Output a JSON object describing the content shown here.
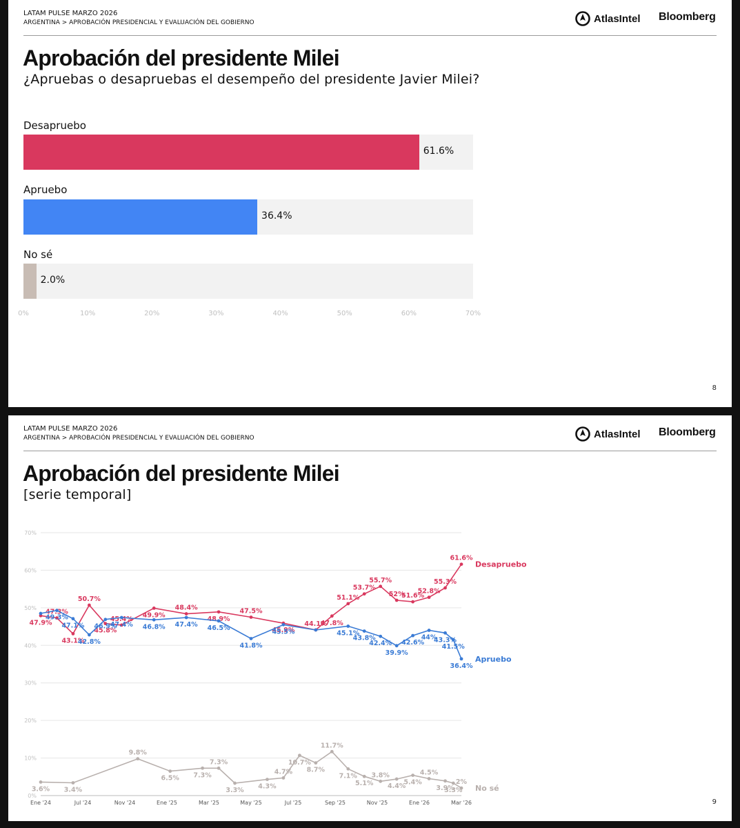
{
  "slide1": {
    "header_line1": "LATAM PULSE MARZO 2026",
    "header_line2a": "ARGENTINA",
    "header_sep": ">",
    "header_line2b": "APROBACIÓN PRESIDENCIAL Y EVALUACIÓN DEL GOBIERNO",
    "logo_atlas": "AtlasIntel",
    "logo_bloomberg": "Bloomberg",
    "title": "Aprobación del presidente Milei",
    "subtitle": "¿Apruebas o desapruebas el desempeño del presidente Javier Milei?",
    "page_number": "8"
  },
  "slide2": {
    "header_line1": "LATAM PULSE MARZO 2026",
    "header_line2a": "ARGENTINA",
    "header_sep": ">",
    "header_line2b": "APROBACIÓN PRESIDENCIAL Y EVALUACIÓN DEL GOBIERNO",
    "logo_atlas": "AtlasIntel",
    "logo_bloomberg": "Bloomberg",
    "title": "Aprobación del presidente Milei",
    "subtitle": "[serie temporal]",
    "page_number": "9"
  },
  "chart_data": [
    {
      "type": "bar",
      "orientation": "horizontal",
      "categories": [
        "Desapruebo",
        "Apruebo",
        "No sé"
      ],
      "values": [
        61.6,
        36.4,
        2.0
      ],
      "value_labels": [
        "61.6%",
        "36.4%",
        "2.0%"
      ],
      "colors": [
        "#d9385e",
        "#4285f4",
        "#c8bcb4"
      ],
      "xlim": [
        0,
        70
      ],
      "xticks": [
        "0%",
        "10%",
        "20%",
        "30%",
        "40%",
        "50%",
        "60%",
        "70%"
      ]
    },
    {
      "type": "line",
      "x": [
        "Ene '24",
        "Mar '24",
        "May '24",
        "Jul '24",
        "Sep '24",
        "Nov '24",
        "Ene '25",
        "Mar '25",
        "May '25",
        "Jul '25",
        "Sep '25",
        "Nov '25",
        "Ene '26",
        "Mar '26"
      ],
      "xlabels": [
        "Ene '24",
        "Jul '24",
        "Nov '24",
        "Ene '25",
        "Mar '25",
        "May '25",
        "Jul '25",
        "Sep '25",
        "Nov '25",
        "Ene '26",
        "Mar '26"
      ],
      "ylim": [
        0,
        70
      ],
      "yticks": [
        "0%",
        "10%",
        "20%",
        "30%",
        "40%",
        "50%",
        "60%",
        "70%"
      ],
      "series": [
        {
          "name": "Desapruebo",
          "color": "#d9385e",
          "points": [
            {
              "x": "Jan 2024",
              "y": 47.9,
              "label": "47.9%"
            },
            {
              "x": "Feb 2024",
              "y": 47.3,
              "label": "47.3%"
            },
            {
              "x": "Mar 2024",
              "y": 43.1,
              "label": "43.1%"
            },
            {
              "x": "Apr 2024",
              "y": 50.7,
              "label": "50.7%"
            },
            {
              "x": "May 2024",
              "y": 45.8,
              "label": "45.8%"
            },
            {
              "x": "Jun 2024",
              "y": 45.4,
              "label": "45.4%"
            },
            {
              "x": "Aug 2024",
              "y": 49.9,
              "label": "49.9%"
            },
            {
              "x": "Oct 2024",
              "y": 48.4,
              "label": "48.4%"
            },
            {
              "x": "Dec 2024",
              "y": 48.9,
              "label": "48.9%"
            },
            {
              "x": "Feb 2025",
              "y": 47.5,
              "label": "47.5%"
            },
            {
              "x": "Apr 2025",
              "y": 45.9,
              "label": "45.9%"
            },
            {
              "x": "Jun 2025",
              "y": 44.1,
              "label": "44.1%"
            },
            {
              "x": "Jul 2025",
              "y": 47.8,
              "label": "47.8%"
            },
            {
              "x": "Aug 2025",
              "y": 51.1,
              "label": "51.1%"
            },
            {
              "x": "Sep 2025",
              "y": 53.7,
              "label": "53.7%"
            },
            {
              "x": "Oct 2025",
              "y": 55.7,
              "label": "55.7%"
            },
            {
              "x": "Nov 2025",
              "y": 52.0,
              "label": "52%"
            },
            {
              "x": "Dec 2025",
              "y": 51.6,
              "label": "51.6%"
            },
            {
              "x": "Jan 2026",
              "y": 52.8,
              "label": "52.8%"
            },
            {
              "x": "Feb 2026",
              "y": 55.3,
              "label": "55.3%"
            },
            {
              "x": "Mar 2026",
              "y": 61.6,
              "label": "61.6%"
            }
          ]
        },
        {
          "name": "Apruebo",
          "color": "#3a7bd5",
          "points": [
            {
              "x": "Jan 2024",
              "y": 48.5,
              "label": ""
            },
            {
              "x": "Feb 2024",
              "y": 49.3,
              "label": "49.3%"
            },
            {
              "x": "Mar 2024",
              "y": 47.1,
              "label": "47.1%"
            },
            {
              "x": "Apr 2024",
              "y": 42.8,
              "label": "42.8%"
            },
            {
              "x": "May 2024",
              "y": 46.9,
              "label": "46.9%"
            },
            {
              "x": "Jun 2024",
              "y": 47.4,
              "label": "47.4%"
            },
            {
              "x": "Aug 2024",
              "y": 46.8,
              "label": "46.8%"
            },
            {
              "x": "Oct 2024",
              "y": 47.4,
              "label": "47.4%"
            },
            {
              "x": "Dec 2024",
              "y": 46.5,
              "label": "46.5%"
            },
            {
              "x": "Feb 2025",
              "y": 41.8,
              "label": "41.8%"
            },
            {
              "x": "Apr 2025",
              "y": 45.5,
              "label": "45.5%"
            },
            {
              "x": "Jun 2025",
              "y": 44.1,
              "label": ""
            },
            {
              "x": "Aug 2025",
              "y": 45.1,
              "label": "45.1%"
            },
            {
              "x": "Sep 2025",
              "y": 43.8,
              "label": "43.8%"
            },
            {
              "x": "Oct 2025",
              "y": 42.4,
              "label": "42.4%"
            },
            {
              "x": "Nov 2025",
              "y": 39.9,
              "label": "39.9%"
            },
            {
              "x": "Dec 2025",
              "y": 42.6,
              "label": "42.6%"
            },
            {
              "x": "Jan 2026",
              "y": 44.0,
              "label": "44%"
            },
            {
              "x": "Feb 2026",
              "y": 43.3,
              "label": "43.3%"
            },
            {
              "x": "Feb 2026",
              "y": 41.5,
              "label": "41.5%"
            },
            {
              "x": "Mar 2026",
              "y": 36.4,
              "label": "36.4%"
            }
          ]
        },
        {
          "name": "No sé",
          "color": "#b8b0ad",
          "points": [
            {
              "x": "Jan 2024",
              "y": 3.6,
              "label": "3.6%"
            },
            {
              "x": "Mar 2024",
              "y": 3.4,
              "label": "3.4%"
            },
            {
              "x": "Jul 2024",
              "y": 9.8,
              "label": "9.8%"
            },
            {
              "x": "Sep 2024",
              "y": 6.5,
              "label": "6.5%"
            },
            {
              "x": "Nov 2024",
              "y": 7.3,
              "label": "7.3%"
            },
            {
              "x": "Dec 2024",
              "y": 7.3,
              "label": "7.3%"
            },
            {
              "x": "Jan 2025",
              "y": 3.3,
              "label": "3.3%"
            },
            {
              "x": "Mar 2025",
              "y": 4.3,
              "label": "4.3%"
            },
            {
              "x": "Apr 2025",
              "y": 4.7,
              "label": "4.7%"
            },
            {
              "x": "May 2025",
              "y": 10.7,
              "label": "10.7%"
            },
            {
              "x": "Jun 2025",
              "y": 8.7,
              "label": "8.7%"
            },
            {
              "x": "Jul 2025",
              "y": 11.7,
              "label": "11.7%"
            },
            {
              "x": "Aug 2025",
              "y": 7.1,
              "label": "7.1%"
            },
            {
              "x": "Sep 2025",
              "y": 5.1,
              "label": "5.1%"
            },
            {
              "x": "Oct 2025",
              "y": 3.8,
              "label": "3.8%"
            },
            {
              "x": "Nov 2025",
              "y": 4.4,
              "label": "4.4%"
            },
            {
              "x": "Dec 2025",
              "y": 5.4,
              "label": "5.4%"
            },
            {
              "x": "Jan 2026",
              "y": 4.5,
              "label": "4.5%"
            },
            {
              "x": "Feb 2026",
              "y": 3.9,
              "label": "3.9%"
            },
            {
              "x": "Feb 2026",
              "y": 3.3,
              "label": "3.3%"
            },
            {
              "x": "Mar 2026",
              "y": 2.0,
              "label": "2%"
            }
          ]
        }
      ]
    }
  ]
}
